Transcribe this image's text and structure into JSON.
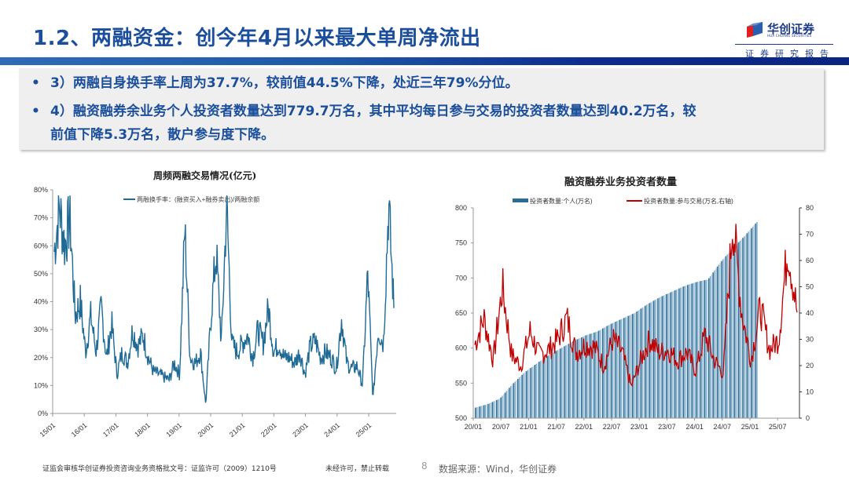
{
  "header": {
    "title": "1.2、两融资金：创今年4月以来最大单周净流出",
    "logo_name": "华创证券",
    "logo_sub": "HUA CHUANG SECURITIES",
    "report_label": "证券研究报告"
  },
  "summary": {
    "bullets": [
      {
        "marker": "•",
        "text": "3）两融自身换手率上周为37.7%，较前值44.5%下降，处近三年79%分位。"
      },
      {
        "marker": "•",
        "text": "4）融资融券余业务个人投资者数量达到779.7万名，其中平均每日参与交易的投资者数量达到40.2万名，较"
      },
      {
        "marker": "",
        "text": "前值下降5.3万名，散户参与度下降。"
      }
    ]
  },
  "footer": {
    "license": "证监会审核华创证券投资咨询业务资格批文号：证监许可（2009）1210号",
    "copyright": "未经许可，禁止转载",
    "page": "8",
    "source": "数据来源：Wind，华创证券"
  },
  "chart_data": [
    {
      "type": "line",
      "title": "周频两融交易情况(亿元)",
      "legend": [
        "两融换手率：(融资买入+融券卖出)/两融余额"
      ],
      "legend_position": "top",
      "xlabel": "",
      "ylabel": "",
      "ylim": [
        0,
        80
      ],
      "y_ticks": [
        "0%",
        "10%",
        "20%",
        "30%",
        "40%",
        "50%",
        "60%",
        "70%",
        "80%"
      ],
      "x_ticks": [
        "15/01",
        "16/01",
        "17/01",
        "18/01",
        "19/01",
        "20/01",
        "21/01",
        "22/01",
        "23/01",
        "24/01",
        "25/01"
      ],
      "grid": false,
      "color": "#1f6b95",
      "series": [
        {
          "name": "两融换手率：(融资买入+融券卖出)/两融余额",
          "x": [
            "15/01",
            "15/03",
            "15/05",
            "15/07",
            "15/09",
            "15/11",
            "16/01",
            "16/03",
            "16/05",
            "16/07",
            "16/09",
            "16/11",
            "17/01",
            "17/03",
            "17/05",
            "17/07",
            "17/09",
            "17/11",
            "18/01",
            "18/03",
            "18/05",
            "18/07",
            "18/09",
            "18/11",
            "19/01",
            "19/03",
            "19/05",
            "19/07",
            "19/09",
            "19/11",
            "20/01",
            "20/03",
            "20/05",
            "20/07",
            "20/09",
            "20/11",
            "21/01",
            "21/03",
            "21/05",
            "21/07",
            "21/09",
            "21/11",
            "22/01",
            "22/03",
            "22/05",
            "22/07",
            "22/09",
            "22/11",
            "23/01",
            "23/03",
            "23/05",
            "23/07",
            "23/09",
            "23/11",
            "24/01",
            "24/03",
            "24/05",
            "24/07",
            "24/09",
            "24/11",
            "25/01",
            "25/03",
            "25/05",
            "25/07",
            "25/09",
            "25/11"
          ],
          "values": [
            58,
            74,
            60,
            70,
            35,
            40,
            22,
            35,
            22,
            38,
            20,
            32,
            14,
            22,
            18,
            30,
            24,
            28,
            20,
            15,
            14,
            13,
            12,
            18,
            14,
            66,
            20,
            18,
            22,
            3,
            35,
            58,
            25,
            75,
            25,
            22,
            25,
            28,
            20,
            30,
            25,
            38,
            22,
            25,
            20,
            20,
            18,
            22,
            14,
            24,
            26,
            20,
            22,
            20,
            16,
            34,
            18,
            16,
            17,
            10,
            50,
            5,
            30,
            25,
            75,
            38
          ]
        }
      ],
      "annotations": {
        "last_value": 37.7,
        "previous_value": 44.5
      }
    },
    {
      "type": "bar",
      "title": "融资融券业务投资者数量",
      "legend": [
        "投资者数量:个人(万名)",
        "投资者数量:参与交易(万名,右轴)"
      ],
      "legend_position": "top",
      "x_ticks": [
        "20/01",
        "20/07",
        "21/01",
        "21/07",
        "22/01",
        "22/07",
        "23/01",
        "23/07",
        "24/01",
        "24/07",
        "25/01",
        "25/07"
      ],
      "ylim": [
        500,
        800
      ],
      "y_ticks": [
        500,
        550,
        600,
        650,
        700,
        750,
        800
      ],
      "y2lim": [
        0,
        80
      ],
      "y2_ticks": [
        0,
        10,
        20,
        30,
        40,
        50,
        60,
        70,
        80
      ],
      "grid": false,
      "series": [
        {
          "name": "投资者数量:个人(万名)",
          "type": "bar",
          "axis": "left",
          "color": "#3e7ea6",
          "x": [
            "20/01",
            "20/04",
            "20/07",
            "20/10",
            "21/01",
            "21/04",
            "21/07",
            "21/10",
            "22/01",
            "22/04",
            "22/07",
            "22/10",
            "23/01",
            "23/04",
            "23/07",
            "23/10",
            "24/01",
            "24/04",
            "24/07",
            "24/10",
            "25/01",
            "25/04",
            "25/07",
            "25/10"
          ],
          "values": [
            515,
            520,
            528,
            548,
            565,
            578,
            590,
            600,
            610,
            618,
            624,
            634,
            642,
            650,
            662,
            672,
            680,
            688,
            694,
            698,
            722,
            742,
            760,
            780
          ]
        },
        {
          "name": "投资者数量:参与交易(万名,右轴)",
          "type": "line",
          "axis": "right",
          "color": "#c00000",
          "x": [
            "20/01",
            "20/03",
            "20/05",
            "20/07",
            "20/09",
            "20/11",
            "21/01",
            "21/03",
            "21/05",
            "21/07",
            "21/09",
            "21/11",
            "22/01",
            "22/03",
            "22/05",
            "22/07",
            "22/09",
            "22/11",
            "23/01",
            "23/03",
            "23/05",
            "23/07",
            "23/09",
            "23/11",
            "24/01",
            "24/03",
            "24/05",
            "24/07",
            "24/09",
            "24/11",
            "25/01",
            "25/03",
            "25/05",
            "25/07",
            "25/09",
            "25/11"
          ],
          "values": [
            28,
            38,
            22,
            50,
            24,
            20,
            33,
            24,
            26,
            30,
            38,
            25,
            28,
            27,
            20,
            30,
            25,
            12,
            22,
            30,
            25,
            26,
            22,
            25,
            18,
            32,
            22,
            17,
            76,
            40,
            22,
            42,
            26,
            30,
            66,
            40
          ]
        }
      ]
    }
  ]
}
